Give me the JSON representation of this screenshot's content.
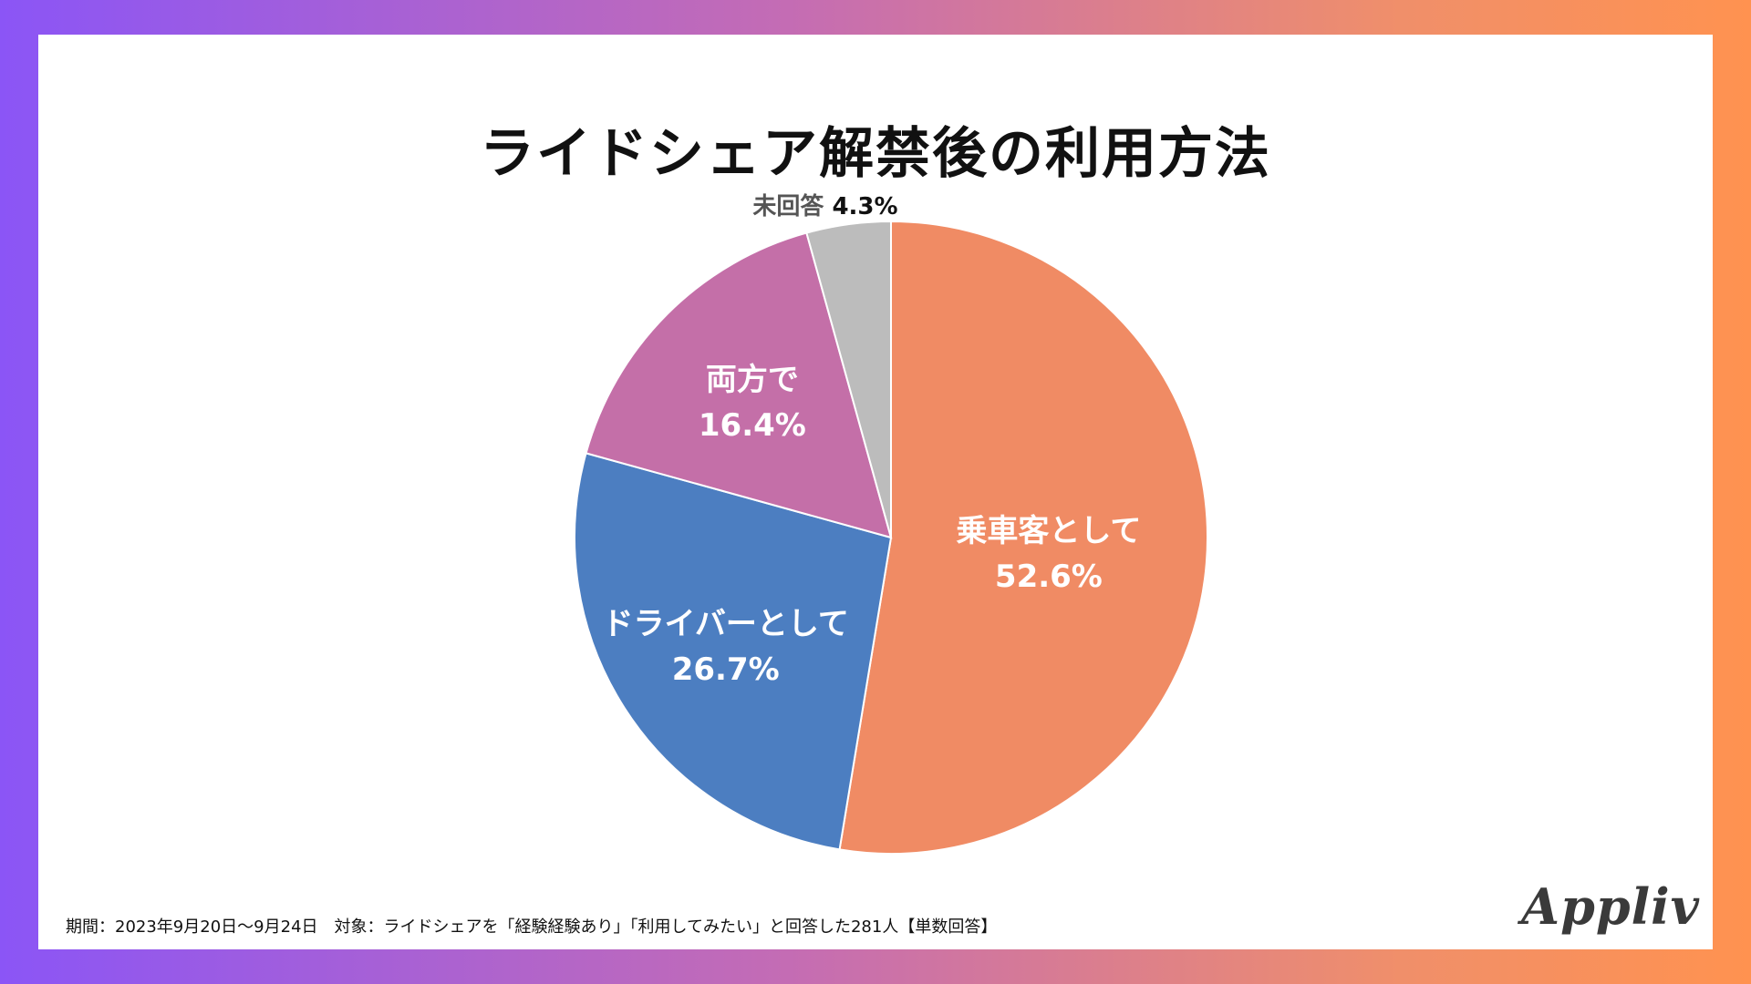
{
  "title": "ライドシェア解禁後の利用方法",
  "chart_data": {
    "type": "pie",
    "title": "ライドシェア解禁後の利用方法",
    "slices": [
      {
        "label": "乗車客として",
        "value": 52.6,
        "value_label": "52.6%",
        "color": "#f08b64"
      },
      {
        "label": "ドライバーとして",
        "value": 26.7,
        "value_label": "26.7%",
        "color": "#4c7ec1"
      },
      {
        "label": "両方で",
        "value": 16.4,
        "value_label": "16.4%",
        "color": "#c46fa8"
      },
      {
        "label": "未回答",
        "value": 4.3,
        "value_label": "4.3%",
        "color": "#bcbcbc"
      }
    ],
    "start": "12 o'clock",
    "direction": "clockwise"
  },
  "footnote": "期間：2023年9月20日～9月24日　対象：ライドシェアを「経験経験あり」「利用してみたい」と回答した281人【単数回答】",
  "logo": "Appliv"
}
